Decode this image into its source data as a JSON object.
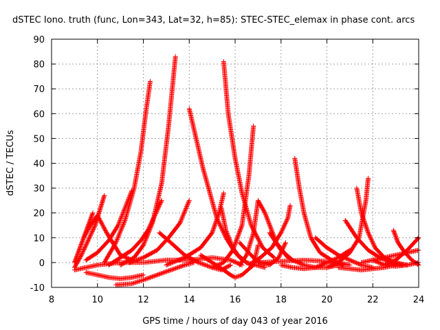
{
  "chart_data": {
    "type": "scatter",
    "title": "dSTEC Iono. truth (func, Lon=343, Lat=32, h=85): STEC-STEC_elemax in phase cont. arcs",
    "xlabel": "GPS time / hours of day 043 of year 2016",
    "ylabel": "dSTEC  / TECUs",
    "xlim": [
      8,
      24
    ],
    "ylim": [
      -10,
      90
    ],
    "x_ticks": [
      8,
      10,
      12,
      14,
      16,
      18,
      20,
      22,
      24
    ],
    "y_ticks": [
      -10,
      0,
      10,
      20,
      30,
      40,
      50,
      60,
      70,
      80,
      90
    ],
    "x_tick_labels": [
      "8",
      "10",
      "12",
      "14",
      "16",
      "18",
      "20",
      "22",
      "24"
    ],
    "y_tick_labels": [
      "-10",
      "0",
      "10",
      "20",
      "30",
      "40",
      "50",
      "60",
      "70",
      "80",
      "90"
    ],
    "grid": true,
    "marker": "+",
    "color": "#ff0000",
    "series": [
      {
        "x": [
          9.0,
          9.2,
          9.4,
          9.6,
          9.8
        ],
        "y": [
          0,
          5,
          10,
          15,
          20
        ]
      },
      {
        "x": [
          9.0,
          9.3,
          9.6,
          9.9,
          10.1,
          10.3
        ],
        "y": [
          -2,
          3,
          9,
          15,
          21,
          27
        ]
      },
      {
        "x": [
          9.4,
          9.7,
          10.0,
          10.4,
          10.8,
          11.0,
          11.5
        ],
        "y": [
          10,
          15,
          19,
          12,
          6,
          3,
          1
        ]
      },
      {
        "x": [
          9.5,
          10.0,
          10.5,
          10.9,
          11.2,
          11.5
        ],
        "y": [
          1,
          4,
          9,
          15,
          22,
          29
        ]
      },
      {
        "x": [
          10.3,
          10.8,
          11.2,
          11.6,
          11.9,
          12.1,
          12.3
        ],
        "y": [
          0,
          8,
          17,
          30,
          45,
          60,
          73
        ]
      },
      {
        "x": [
          10.5,
          11.0,
          11.5,
          11.9,
          12.2,
          12.5,
          12.8
        ],
        "y": [
          -1,
          2,
          5,
          9,
          13,
          19,
          25
        ]
      },
      {
        "x": [
          11.0,
          11.6,
          12.0,
          12.4,
          12.8,
          13.1,
          13.4
        ],
        "y": [
          -1,
          2,
          7,
          16,
          32,
          55,
          83
        ]
      },
      {
        "x": [
          11.4,
          12.0,
          12.6,
          13.1,
          13.6,
          14.0
        ],
        "y": [
          0,
          2,
          5,
          10,
          16,
          25
        ]
      },
      {
        "x": [
          9.0,
          10.0,
          11.0,
          12.0,
          13.0,
          14.0,
          15.0,
          15.8,
          16.3
        ],
        "y": [
          -3,
          -1,
          0,
          0,
          1,
          1,
          2,
          1,
          -1
        ]
      },
      {
        "x": [
          9.5,
          10.0,
          10.5,
          11.0,
          11.5,
          12.0
        ],
        "y": [
          -4,
          -5,
          -6,
          -6.5,
          -6,
          -5
        ]
      },
      {
        "x": [
          10.8,
          11.5,
          12.0,
          12.6,
          13.2,
          13.8,
          14.2
        ],
        "y": [
          -9,
          -8.5,
          -7,
          -5,
          -3,
          -1,
          0
        ]
      },
      {
        "x": [
          12.7,
          13.2,
          13.8,
          14.4,
          15.0,
          15.4,
          15.8
        ],
        "y": [
          12,
          8,
          3,
          0,
          -2,
          -3,
          -1
        ]
      },
      {
        "x": [
          14.0,
          14.3,
          14.6,
          14.9,
          15.2,
          15.6,
          16.0,
          16.5
        ],
        "y": [
          62,
          50,
          38,
          28,
          18,
          10,
          4,
          0
        ]
      },
      {
        "x": [
          13.0,
          13.8,
          14.5,
          15.0,
          15.3,
          15.5
        ],
        "y": [
          -1,
          2,
          6,
          12,
          20,
          28
        ]
      },
      {
        "x": [
          15.4,
          15.6,
          15.9,
          16.2,
          16.5,
          16.9,
          17.3
        ],
        "y": [
          22,
          13,
          6,
          2,
          0,
          -1,
          -2
        ]
      },
      {
        "x": [
          15.5,
          15.7,
          16.0,
          16.3,
          16.7,
          17.2,
          17.7
        ],
        "y": [
          81,
          60,
          42,
          28,
          15,
          6,
          2
        ]
      },
      {
        "x": [
          14.5,
          15.0,
          15.5,
          15.8,
          16.0,
          16.3,
          16.8,
          17.0
        ],
        "y": [
          3,
          0,
          -3,
          -5,
          -6,
          -5,
          -1,
          7
        ]
      },
      {
        "x": [
          15.0,
          15.5,
          15.9,
          16.3,
          16.6,
          16.8
        ],
        "y": [
          -2,
          0,
          5,
          15,
          35,
          55
        ]
      },
      {
        "x": [
          16.2,
          16.5,
          16.8,
          17.1,
          17.5,
          17.9,
          18.2
        ],
        "y": [
          8,
          5,
          2,
          0,
          -1,
          2,
          8
        ]
      },
      {
        "x": [
          16.2,
          16.5,
          16.8,
          17.0,
          17.3,
          17.8,
          18.3
        ],
        "y": [
          -1,
          3,
          12,
          25,
          20,
          8,
          2
        ]
      },
      {
        "x": [
          16.6,
          17.1,
          17.6,
          18.0,
          18.3,
          18.4
        ],
        "y": [
          -1,
          2,
          6,
          12,
          18,
          23
        ]
      },
      {
        "x": [
          17.5,
          18.0,
          18.5,
          19.0,
          19.5,
          20.0,
          20.5
        ],
        "y": [
          12,
          5,
          1,
          -1,
          -2,
          -2,
          -1
        ]
      },
      {
        "x": [
          18.6,
          18.8,
          19.0,
          19.3,
          19.7,
          20.2,
          20.7
        ],
        "y": [
          42,
          30,
          20,
          10,
          4,
          1,
          -1
        ]
      },
      {
        "x": [
          17.0,
          18.0,
          19.0,
          20.0,
          20.5,
          21.0
        ],
        "y": [
          0,
          0.5,
          1,
          0.5,
          0,
          -1
        ]
      },
      {
        "x": [
          18.0,
          18.5,
          19.0,
          19.5,
          20.0,
          20.5,
          21.0
        ],
        "y": [
          -1,
          -2,
          -2.5,
          -2,
          0,
          2,
          5
        ]
      },
      {
        "x": [
          19.5,
          20.0,
          20.5,
          21.0,
          21.5,
          22.0
        ],
        "y": [
          10,
          6,
          3,
          1,
          -1,
          -2
        ]
      },
      {
        "x": [
          20.0,
          20.5,
          21.0,
          21.4,
          21.7,
          21.8
        ],
        "y": [
          -2,
          0,
          4,
          10,
          25,
          34
        ]
      },
      {
        "x": [
          21.3,
          21.5,
          21.8,
          22.1,
          22.5,
          23.0,
          23.5
        ],
        "y": [
          30,
          20,
          12,
          6,
          2,
          0,
          -1
        ]
      },
      {
        "x": [
          20.8,
          21.3,
          21.8,
          22.3,
          22.8,
          23.3
        ],
        "y": [
          17,
          10,
          5,
          2,
          0,
          -1
        ]
      },
      {
        "x": [
          20.5,
          21.0,
          21.5,
          22.0,
          22.5,
          23.0
        ],
        "y": [
          -2,
          -2.5,
          -3,
          -2.5,
          -2,
          -1
        ]
      },
      {
        "x": [
          21.5,
          22.0,
          22.5,
          23.0,
          23.5,
          24.0
        ],
        "y": [
          0,
          1,
          2,
          3,
          4,
          5
        ]
      },
      {
        "x": [
          22.9,
          23.1,
          23.4,
          23.7,
          24.0
        ],
        "y": [
          13,
          8,
          4,
          1,
          -1
        ]
      },
      {
        "x": [
          22.5,
          23.0,
          23.5,
          24.0
        ],
        "y": [
          -1,
          1,
          5,
          10
        ]
      },
      {
        "x": [
          22.0,
          22.5,
          23.0,
          23.5,
          24.0
        ],
        "y": [
          1,
          -1,
          -1.5,
          -1,
          0
        ]
      }
    ]
  }
}
